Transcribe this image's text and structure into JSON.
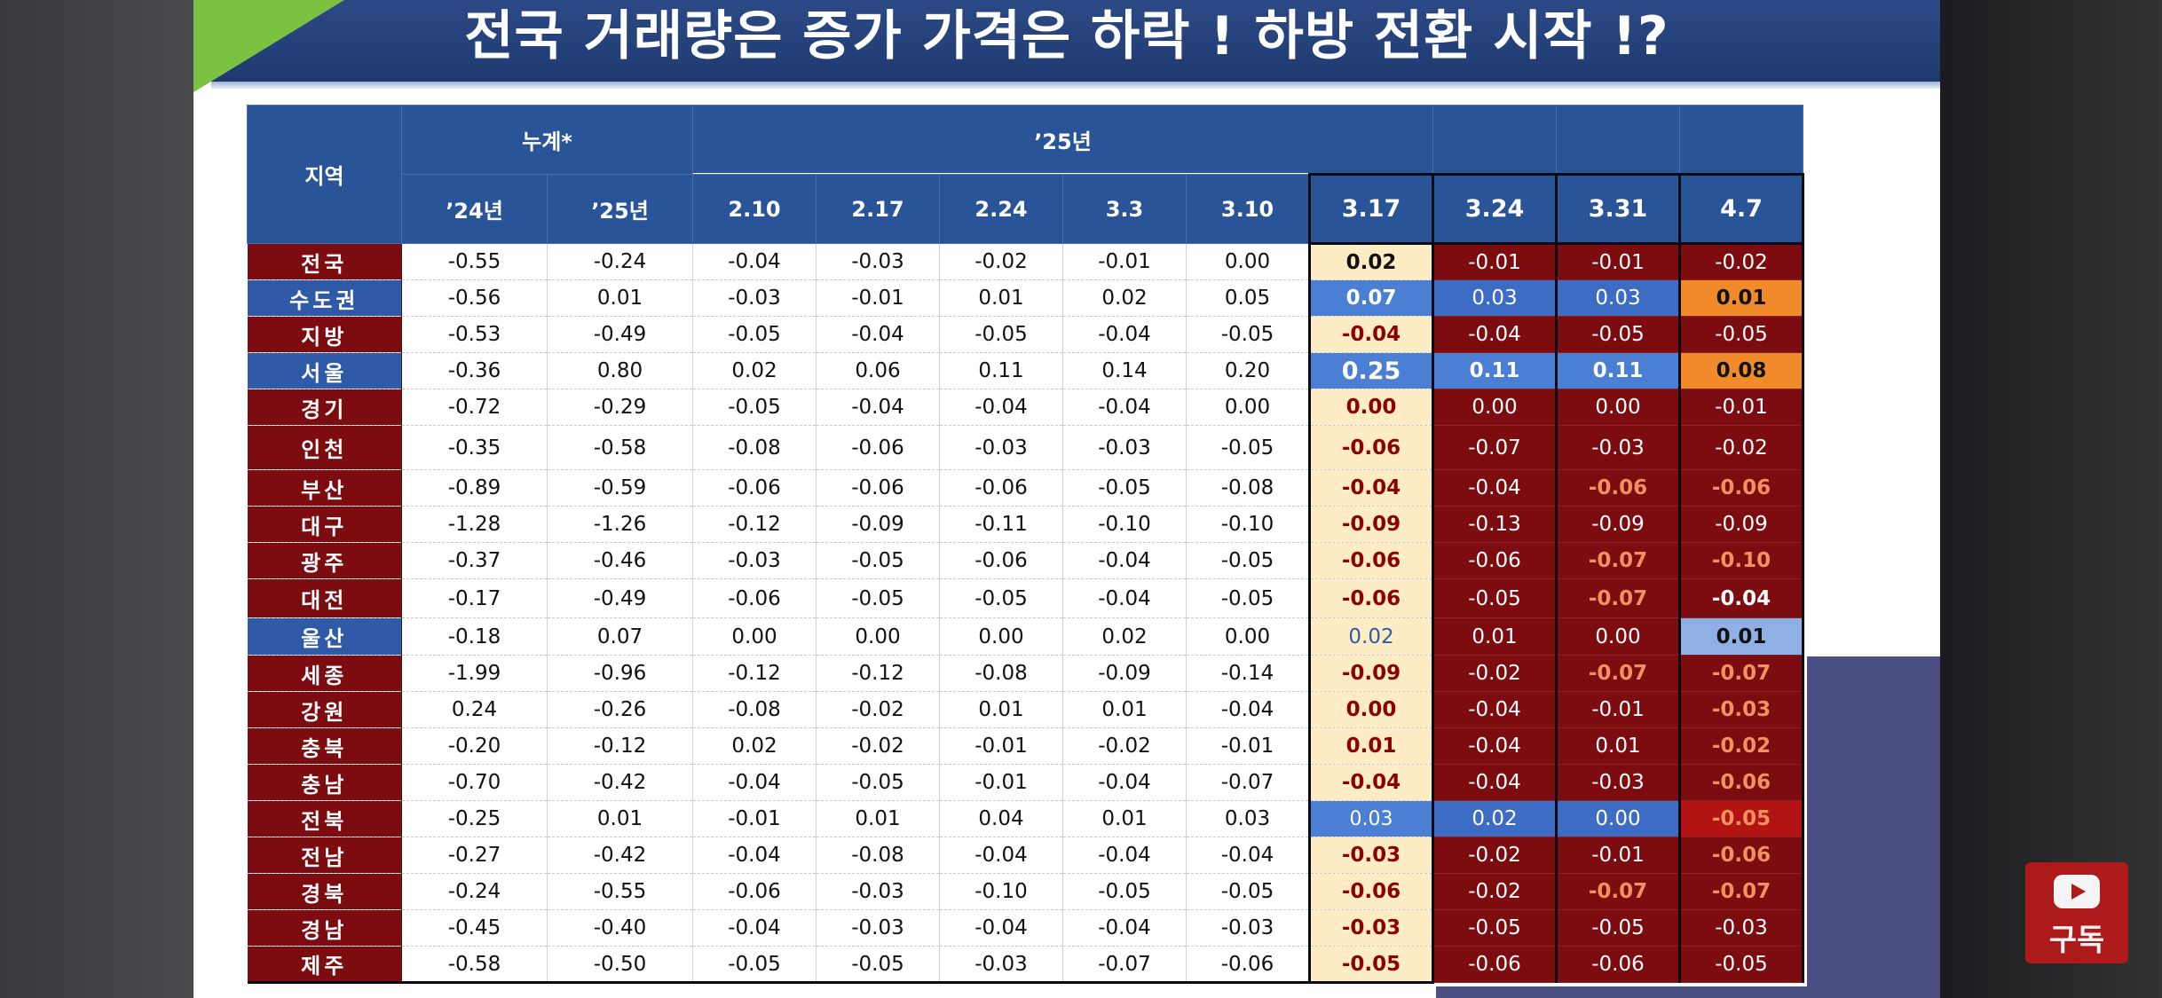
{
  "title": "전국 거래량은 증가 가격은 하락 ! 하방 전환 시작 !?",
  "header": {
    "region": "지역",
    "cumulative": "누계*",
    "year25": "’25년",
    "col_24": "’24년",
    "col_25": "’25년",
    "weeks": [
      "2.10",
      "2.17",
      "2.24",
      "3.3",
      "3.10",
      "3.17",
      "3.24",
      "3.31",
      "4.7"
    ]
  },
  "rows": [
    {
      "region": "전국",
      "v": [
        "-0.55",
        "-0.24",
        "-0.04",
        "-0.03",
        "-0.02",
        "-0.01",
        "0.00",
        "0.02",
        "-0.01",
        "-0.01",
        "-0.02"
      ]
    },
    {
      "region": "수도권",
      "v": [
        "-0.56",
        "0.01",
        "-0.03",
        "-0.01",
        "0.01",
        "0.02",
        "0.05",
        "0.07",
        "0.03",
        "0.03",
        "0.01"
      ]
    },
    {
      "region": "지방",
      "v": [
        "-0.53",
        "-0.49",
        "-0.05",
        "-0.04",
        "-0.05",
        "-0.04",
        "-0.05",
        "-0.04",
        "-0.04",
        "-0.05",
        "-0.05"
      ]
    },
    {
      "region": "서울",
      "v": [
        "-0.36",
        "0.80",
        "0.02",
        "0.06",
        "0.11",
        "0.14",
        "0.20",
        "0.25",
        "0.11",
        "0.11",
        "0.08"
      ]
    },
    {
      "region": "경기",
      "v": [
        "-0.72",
        "-0.29",
        "-0.05",
        "-0.04",
        "-0.04",
        "-0.04",
        "0.00",
        "0.00",
        "0.00",
        "0.00",
        "-0.01"
      ]
    },
    {
      "region": "인천",
      "v": [
        "-0.35",
        "-0.58",
        "-0.08",
        "-0.06",
        "-0.03",
        "-0.03",
        "-0.05",
        "-0.06",
        "-0.07",
        "-0.03",
        "-0.02"
      ]
    },
    {
      "region": "부산",
      "v": [
        "-0.89",
        "-0.59",
        "-0.06",
        "-0.06",
        "-0.06",
        "-0.05",
        "-0.08",
        "-0.04",
        "-0.04",
        "-0.06",
        "-0.06"
      ]
    },
    {
      "region": "대구",
      "v": [
        "-1.28",
        "-1.26",
        "-0.12",
        "-0.09",
        "-0.11",
        "-0.10",
        "-0.10",
        "-0.09",
        "-0.13",
        "-0.09",
        "-0.09"
      ]
    },
    {
      "region": "광주",
      "v": [
        "-0.37",
        "-0.46",
        "-0.03",
        "-0.05",
        "-0.06",
        "-0.04",
        "-0.05",
        "-0.06",
        "-0.06",
        "-0.07",
        "-0.10"
      ]
    },
    {
      "region": "대전",
      "v": [
        "-0.17",
        "-0.49",
        "-0.06",
        "-0.05",
        "-0.05",
        "-0.04",
        "-0.05",
        "-0.06",
        "-0.05",
        "-0.07",
        "-0.04"
      ]
    },
    {
      "region": "울산",
      "v": [
        "-0.18",
        "0.07",
        "0.00",
        "0.00",
        "0.00",
        "0.02",
        "0.00",
        "0.02",
        "0.01",
        "0.00",
        "0.01"
      ]
    },
    {
      "region": "세종",
      "v": [
        "-1.99",
        "-0.96",
        "-0.12",
        "-0.12",
        "-0.08",
        "-0.09",
        "-0.14",
        "-0.09",
        "-0.02",
        "-0.07",
        "-0.07"
      ]
    },
    {
      "region": "강원",
      "v": [
        "0.24",
        "-0.26",
        "-0.08",
        "-0.02",
        "0.01",
        "0.01",
        "-0.04",
        "0.00",
        "-0.04",
        "-0.01",
        "-0.03"
      ]
    },
    {
      "region": "충북",
      "v": [
        "-0.20",
        "-0.12",
        "0.02",
        "-0.02",
        "-0.01",
        "-0.02",
        "-0.01",
        "0.01",
        "-0.04",
        "0.01",
        "-0.02"
      ]
    },
    {
      "region": "충남",
      "v": [
        "-0.70",
        "-0.42",
        "-0.04",
        "-0.05",
        "-0.01",
        "-0.04",
        "-0.07",
        "-0.04",
        "-0.04",
        "-0.03",
        "-0.06"
      ]
    },
    {
      "region": "전북",
      "v": [
        "-0.25",
        "0.01",
        "-0.01",
        "0.01",
        "0.04",
        "0.01",
        "0.03",
        "0.03",
        "0.02",
        "0.00",
        "-0.05"
      ]
    },
    {
      "region": "전남",
      "v": [
        "-0.27",
        "-0.42",
        "-0.04",
        "-0.08",
        "-0.04",
        "-0.04",
        "-0.04",
        "-0.03",
        "-0.02",
        "-0.01",
        "-0.06"
      ]
    },
    {
      "region": "경북",
      "v": [
        "-0.24",
        "-0.55",
        "-0.06",
        "-0.03",
        "-0.10",
        "-0.05",
        "-0.05",
        "-0.06",
        "-0.02",
        "-0.07",
        "-0.07"
      ]
    },
    {
      "region": "경남",
      "v": [
        "-0.45",
        "-0.40",
        "-0.04",
        "-0.03",
        "-0.04",
        "-0.04",
        "-0.03",
        "-0.03",
        "-0.05",
        "-0.05",
        "-0.03"
      ]
    },
    {
      "region": "제주",
      "v": [
        "-0.58",
        "-0.50",
        "-0.05",
        "-0.05",
        "-0.03",
        "-0.07",
        "-0.06",
        "-0.05",
        "-0.06",
        "-0.06",
        "-0.05"
      ]
    }
  ],
  "subscribe": "구독"
}
